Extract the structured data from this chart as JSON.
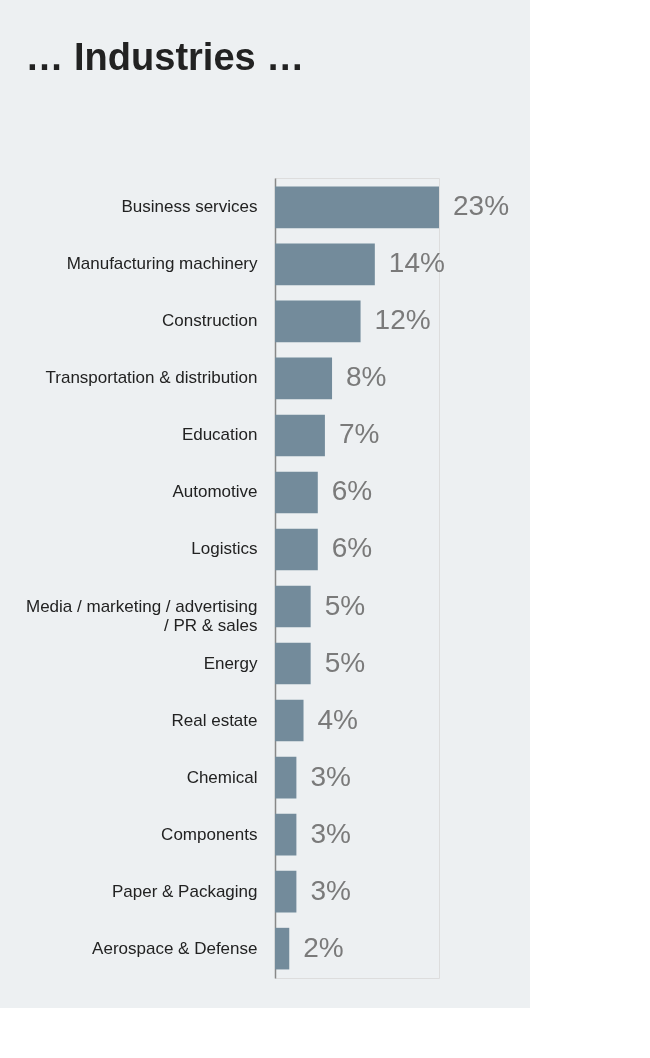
{
  "chart_data": {
    "type": "bar",
    "orientation": "horizontal",
    "title": "… Industries …",
    "categories": [
      "Business services",
      "Manufacturing machinery",
      "Construction",
      "Transportation & distribution",
      "Education",
      "Automotive",
      "Logistics",
      "Media / marketing / advertising / PR & sales",
      "Energy",
      "Real estate",
      "Chemical",
      "Components",
      "Paper & Packaging",
      "Aerospace & Defense"
    ],
    "values": [
      23,
      14,
      12,
      8,
      7,
      6,
      6,
      5,
      5,
      4,
      3,
      3,
      3,
      2
    ],
    "value_labels": [
      "23%",
      "14%",
      "12%",
      "8%",
      "7%",
      "6%",
      "6%",
      "5%",
      "5%",
      "4%",
      "3%",
      "3%",
      "3%",
      "2%"
    ],
    "color": "#738b9b"
  }
}
